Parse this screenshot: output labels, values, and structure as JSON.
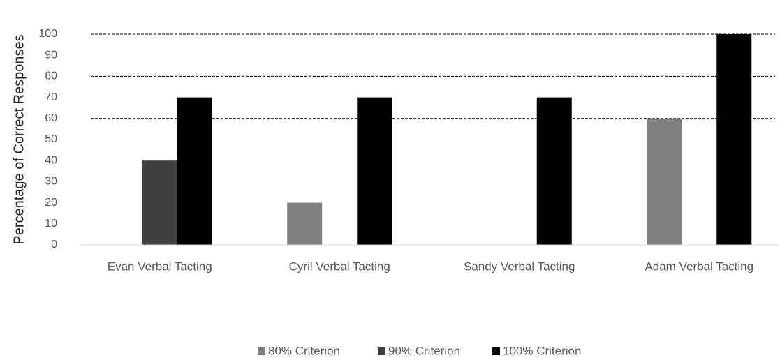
{
  "chart_data": {
    "type": "bar",
    "y_axis_label": "Percentage of Correct Responses",
    "categories": [
      "Evan Verbal Tacting",
      "Cyril Verbal Tacting",
      "Sandy Verbal Tacting",
      "Adam Verbal Tacting"
    ],
    "series": [
      {
        "name": "80% Criterion",
        "color": "#808080",
        "values": [
          0,
          20,
          0,
          60
        ]
      },
      {
        "name": "90% Criterion",
        "color": "#404040",
        "values": [
          40,
          0,
          0,
          0
        ]
      },
      {
        "name": "100% Criterion",
        "color": "#000000",
        "values": [
          70,
          70,
          70,
          100
        ]
      }
    ],
    "reference_lines": [
      60,
      80,
      100
    ],
    "ylim": [
      0,
      100
    ],
    "yticks": [
      0,
      10,
      20,
      30,
      40,
      50,
      60,
      70,
      80,
      90,
      100
    ],
    "grid": false,
    "legend": "bottom"
  }
}
